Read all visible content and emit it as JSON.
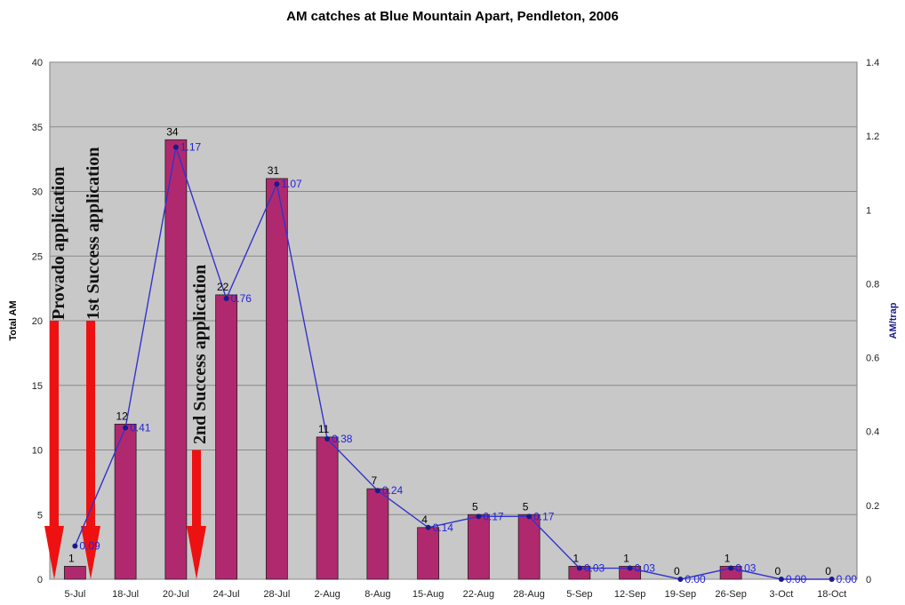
{
  "chart_data": {
    "type": "bar",
    "title": "AM catches at Blue Mountain Apart, Pendleton, 2006",
    "ylabel": "Total AM",
    "y2label": "AM/trap",
    "ylim": [
      0,
      40
    ],
    "y2lim": [
      0,
      1.4
    ],
    "yticks": [
      "0",
      "5",
      "10",
      "15",
      "20",
      "25",
      "30",
      "35",
      "40"
    ],
    "y2ticks": [
      "0",
      "0.2",
      "0.4",
      "0.6",
      "0.8",
      "1",
      "1.2",
      "1.4"
    ],
    "grid": true,
    "categories": [
      "5-Jul",
      "18-Jul",
      "20-Jul",
      "24-Jul",
      "28-Jul",
      "2-Aug",
      "8-Aug",
      "15-Aug",
      "22-Aug",
      "28-Aug",
      "5-Sep",
      "12-Sep",
      "19-Sep",
      "26-Sep",
      "3-Oct",
      "18-Oct"
    ],
    "series": [
      {
        "kind": "bar",
        "axis": "left",
        "values": [
          1,
          12,
          34,
          22,
          31,
          11,
          7,
          4,
          5,
          5,
          1,
          1,
          0,
          1,
          0,
          0
        ],
        "labels": [
          "1",
          "12",
          "34",
          "22",
          "31",
          "11",
          "7",
          "4",
          "5",
          "5",
          "1",
          "1",
          "0",
          "1",
          "0",
          "0"
        ]
      },
      {
        "kind": "line",
        "axis": "right",
        "values": [
          0.09,
          0.41,
          1.17,
          0.76,
          1.07,
          0.38,
          0.24,
          0.14,
          0.17,
          0.17,
          0.03,
          0.03,
          0.0,
          0.03,
          0.0,
          0.0
        ],
        "labels": [
          "0.09",
          "0.41",
          "1.17",
          "0.76",
          "1.07",
          "0.38",
          "0.24",
          "0.14",
          "0.17",
          "0.17",
          "0.03",
          "0.03",
          "0.00",
          "0.03",
          "0.00",
          "0.00"
        ]
      }
    ],
    "annotations": [
      {
        "text": "Provado application",
        "category": "5-Jul"
      },
      {
        "text": "1st Success application",
        "category": "5-Jul"
      },
      {
        "text": "2nd Success application",
        "category": "20-Jul"
      }
    ],
    "colors": {
      "bar": "#b0296e",
      "line": "#3333cc",
      "plot_bg": "#c8c8c8",
      "arrow": "#ee1111"
    }
  }
}
